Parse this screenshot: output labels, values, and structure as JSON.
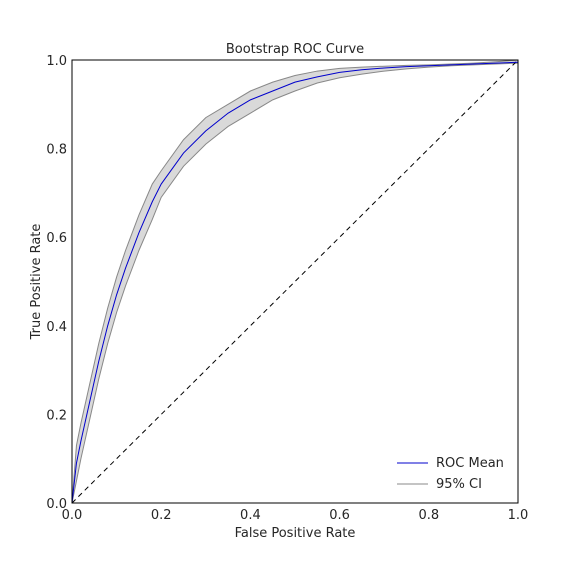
{
  "chart_data": {
    "type": "line",
    "title": "Bootstrap ROC Curve",
    "xlabel": "False Positive Rate",
    "ylabel": "True Positive Rate",
    "xlim": [
      0.0,
      1.0
    ],
    "ylim": [
      0.0,
      1.0
    ],
    "xticks": [
      "0.0",
      "0.2",
      "0.4",
      "0.6",
      "0.8",
      "1.0"
    ],
    "yticks": [
      "0.0",
      "0.2",
      "0.4",
      "0.6",
      "0.8",
      "1.0"
    ],
    "grid": false,
    "legend_position": "lower-right",
    "colors": {
      "mean": "#0000cc",
      "ci_line": "#888888",
      "ci_fill": "#d9d9d9",
      "diagonal": "#000000"
    },
    "series": [
      {
        "name": "ROC Mean",
        "x": [
          0.0,
          0.01,
          0.02,
          0.04,
          0.06,
          0.08,
          0.1,
          0.12,
          0.15,
          0.18,
          0.2,
          0.25,
          0.3,
          0.35,
          0.4,
          0.45,
          0.5,
          0.55,
          0.6,
          0.65,
          0.7,
          0.75,
          0.8,
          0.85,
          0.9,
          0.95,
          1.0
        ],
        "y": [
          0.0,
          0.09,
          0.14,
          0.23,
          0.32,
          0.4,
          0.47,
          0.53,
          0.61,
          0.68,
          0.72,
          0.79,
          0.84,
          0.88,
          0.91,
          0.93,
          0.95,
          0.962,
          0.972,
          0.978,
          0.982,
          0.985,
          0.987,
          0.989,
          0.991,
          0.993,
          0.995
        ]
      },
      {
        "name": "95% CI",
        "x": [
          0.0,
          0.01,
          0.02,
          0.04,
          0.06,
          0.08,
          0.1,
          0.12,
          0.15,
          0.18,
          0.2,
          0.25,
          0.3,
          0.35,
          0.4,
          0.45,
          0.5,
          0.55,
          0.6,
          0.65,
          0.7,
          0.75,
          0.8,
          0.85,
          0.9,
          0.95,
          1.0
        ],
        "upper": [
          0.0,
          0.13,
          0.18,
          0.27,
          0.36,
          0.44,
          0.51,
          0.57,
          0.65,
          0.72,
          0.75,
          0.82,
          0.87,
          0.9,
          0.93,
          0.95,
          0.965,
          0.975,
          0.981,
          0.984,
          0.986,
          0.988,
          0.989,
          0.991,
          0.993,
          0.996,
          1.0
        ],
        "lower": [
          0.0,
          0.05,
          0.1,
          0.19,
          0.28,
          0.36,
          0.43,
          0.49,
          0.57,
          0.64,
          0.69,
          0.76,
          0.81,
          0.85,
          0.88,
          0.91,
          0.93,
          0.948,
          0.96,
          0.968,
          0.975,
          0.98,
          0.984,
          0.987,
          0.989,
          0.991,
          0.993
        ]
      }
    ],
    "reference_line": {
      "x": [
        0.0,
        1.0
      ],
      "y": [
        0.0,
        1.0
      ],
      "style": "dashed"
    },
    "legend": [
      "ROC Mean",
      "95% CI"
    ]
  }
}
